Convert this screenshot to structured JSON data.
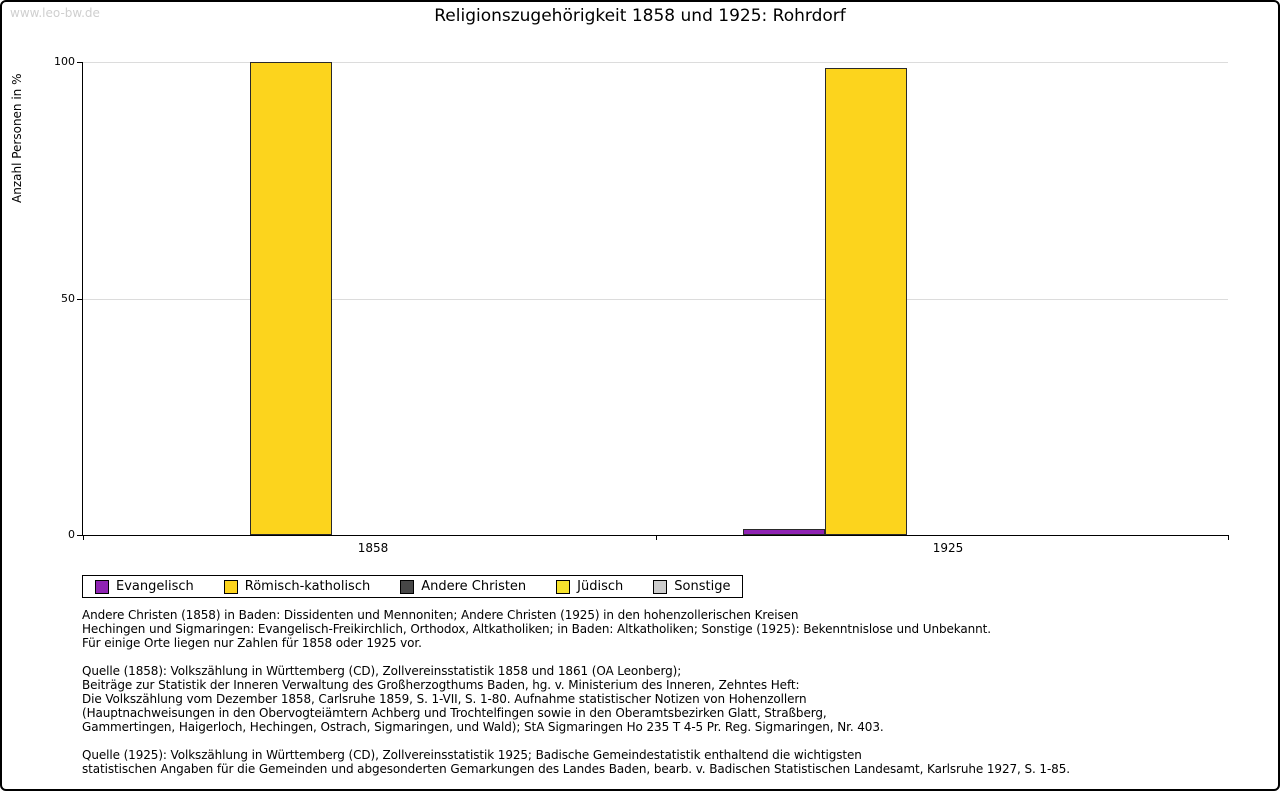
{
  "watermark": "www.leo-bw.de",
  "title": "Religionszugehörigkeit 1858 und 1925: Rohrdorf",
  "chart_data": {
    "type": "bar",
    "title": "Religionszugehörigkeit 1858 und 1925: Rohrdorf",
    "xlabel": "",
    "ylabel": "Anzahl Personen in %",
    "categories": [
      "1858",
      "1925"
    ],
    "series": [
      {
        "name": "Evangelisch",
        "color": "#8f23b3",
        "values": [
          0,
          1.2
        ]
      },
      {
        "name": "Römisch-katholisch",
        "color": "#fcd41d",
        "values": [
          100,
          98.8
        ]
      },
      {
        "name": "Andere Christen",
        "color": "#474747",
        "values": [
          0,
          0
        ]
      },
      {
        "name": "Jüdisch",
        "color": "#f7e32c",
        "values": [
          0,
          0
        ]
      },
      {
        "name": "Sonstige",
        "color": "#cccccc",
        "values": [
          0,
          0
        ]
      }
    ],
    "ylim": [
      0,
      100
    ],
    "yticks": [
      0,
      50,
      100
    ],
    "grid": "horizontal",
    "legend_position": "bottom-left"
  },
  "notes": {
    "para1": "Andere Christen (1858) in Baden: Dissidenten und Mennoniten; Andere Christen (1925) in den hohenzollerischen Kreisen\nHechingen und Sigmaringen: Evangelisch-Freikirchlich, Orthodox, Altkatholiken; in Baden: Altkatholiken; Sonstige (1925): Bekenntnislose und Unbekannt.\nFür einige Orte liegen nur Zahlen für 1858 oder 1925 vor.",
    "para2": "Quelle (1858): Volkszählung in Württemberg (CD), Zollvereinsstatistik 1858 und 1861 (OA Leonberg);\nBeiträge zur Statistik der Inneren Verwaltung des Großherzogthums Baden, hg. v. Ministerium des Inneren, Zehntes Heft:\nDie Volkszählung vom Dezember 1858, Carlsruhe 1859, S. 1-VII, S. 1-80. Aufnahme statistischer Notizen von Hohenzollern\n(Hauptnachweisungen in den Obervogteiämtern Achberg und Trochtelfingen sowie in den Oberamtsbezirken Glatt, Straßberg,\nGammertingen, Haigerloch, Hechingen, Ostrach, Sigmaringen, und Wald); StA Sigmaringen Ho 235 T 4-5 Pr. Reg. Sigmaringen, Nr. 403.",
    "para3": "Quelle (1925): Volkszählung in Württemberg (CD), Zollvereinsstatistik 1925; Badische Gemeindestatistik enthaltend die wichtigsten\nstatistischen Angaben für die Gemeinden und abgesonderten Gemarkungen des Landes Baden, bearb. v. Badischen Statistischen Landesamt, Karlsruhe 1927, S. 1-85."
  }
}
